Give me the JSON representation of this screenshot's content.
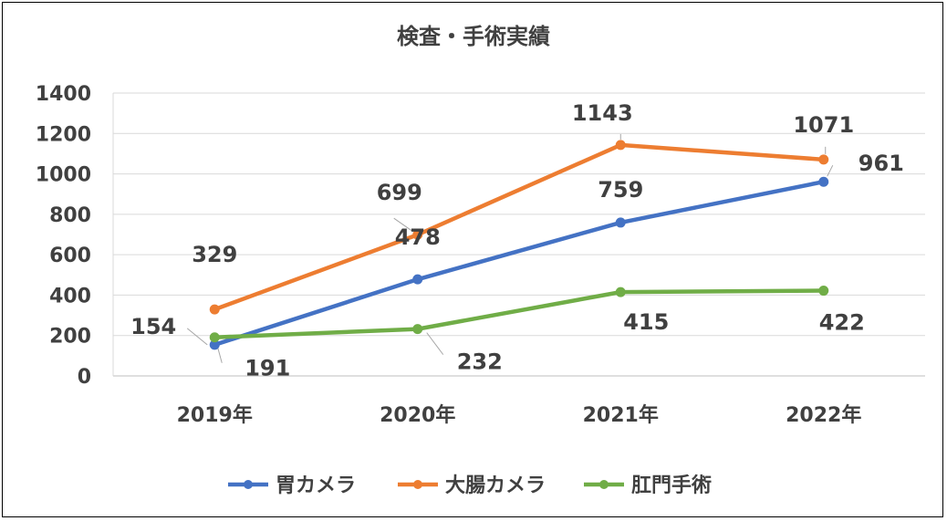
{
  "chart_data": {
    "type": "line",
    "title": "検査・手術実績",
    "xlabel": "",
    "ylabel": "",
    "categories": [
      "2019年",
      "2020年",
      "2021年",
      "2022年"
    ],
    "ylim": [
      0,
      1400
    ],
    "yticks": [
      "0",
      "200",
      "400",
      "600",
      "800",
      "1000",
      "1200",
      "1400"
    ],
    "grid": true,
    "legend_position": "bottom",
    "series": [
      {
        "name": "胃カメラ",
        "color": "#4472C4",
        "values": [
          154,
          478,
          759,
          961
        ],
        "labels": [
          "154",
          "478",
          "759",
          "961"
        ]
      },
      {
        "name": "大腸カメラ",
        "color": "#ED7D31",
        "values": [
          329,
          699,
          1143,
          1071
        ],
        "labels": [
          "329",
          "699",
          "1143",
          "1071"
        ]
      },
      {
        "name": "肛門手術",
        "color": "#70AD47",
        "values": [
          191,
          232,
          415,
          422
        ],
        "labels": [
          "191",
          "232",
          "415",
          "422"
        ]
      }
    ]
  }
}
